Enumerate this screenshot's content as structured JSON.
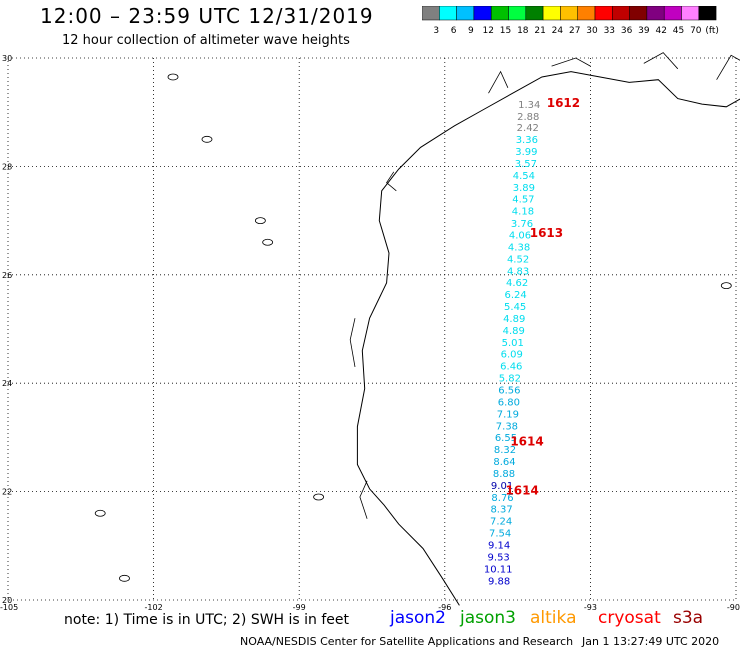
{
  "header": {
    "title": "12:00 – 23:59 UTC 12/31/2019",
    "subtitle": "12 hour collection of altimeter wave heights"
  },
  "legend": {
    "unit": "(ft)",
    "bins": [
      {
        "label": "3",
        "color": "#808080"
      },
      {
        "label": "6",
        "color": "#00ffff"
      },
      {
        "label": "9",
        "color": "#00c0ff"
      },
      {
        "label": "12",
        "color": "#0000ff"
      },
      {
        "label": "15",
        "color": "#00c000"
      },
      {
        "label": "18",
        "color": "#00ff40"
      },
      {
        "label": "21",
        "color": "#008000"
      },
      {
        "label": "24",
        "color": "#ffff00"
      },
      {
        "label": "27",
        "color": "#ffc000"
      },
      {
        "label": "30",
        "color": "#ff8000"
      },
      {
        "label": "33",
        "color": "#ff0000"
      },
      {
        "label": "36",
        "color": "#c00000"
      },
      {
        "label": "39",
        "color": "#800000"
      },
      {
        "label": "42",
        "color": "#800080"
      },
      {
        "label": "45",
        "color": "#c000c0"
      },
      {
        "label": "70",
        "color": "#ff80ff"
      },
      {
        "label": "",
        "color": "#000000"
      }
    ]
  },
  "axes": {
    "lat_ticks": [
      "30",
      "28",
      "26",
      "24",
      "22",
      "20"
    ],
    "lon_ticks": [
      "-105",
      "-102",
      "-99",
      "-96",
      "-93",
      "-90"
    ]
  },
  "track_labels": [
    {
      "value": "1612",
      "lon": -93.9,
      "lat": 29.1
    },
    {
      "value": "1613",
      "lon": -94.25,
      "lat": 26.7
    },
    {
      "value": "1614",
      "lon": -94.65,
      "lat": 22.85
    },
    {
      "value": "1614",
      "lon": -94.75,
      "lat": 21.95
    }
  ],
  "wave_heights": [
    {
      "value": "1.34",
      "lon": -94.26,
      "lat": 29.08,
      "color": "#808080"
    },
    {
      "value": "2.88",
      "lon": -94.28,
      "lat": 28.86,
      "color": "#808080"
    },
    {
      "value": "2.42",
      "lon": -94.29,
      "lat": 28.65,
      "color": "#808080"
    },
    {
      "value": "3.36",
      "lon": -94.31,
      "lat": 28.43,
      "color": "#00ddee"
    },
    {
      "value": "3.99",
      "lon": -94.32,
      "lat": 28.21,
      "color": "#00ddee"
    },
    {
      "value": "3.57",
      "lon": -94.33,
      "lat": 27.99,
      "color": "#00ddee"
    },
    {
      "value": "4.54",
      "lon": -94.37,
      "lat": 27.77,
      "color": "#00ddee"
    },
    {
      "value": "3.89",
      "lon": -94.37,
      "lat": 27.55,
      "color": "#00ddee"
    },
    {
      "value": "4.57",
      "lon": -94.38,
      "lat": 27.33,
      "color": "#00ddee"
    },
    {
      "value": "4.18",
      "lon": -94.39,
      "lat": 27.11,
      "color": "#00ddee"
    },
    {
      "value": "3.76",
      "lon": -94.41,
      "lat": 26.88,
      "color": "#00ddee"
    },
    {
      "value": "4.06",
      "lon": -94.45,
      "lat": 26.67,
      "color": "#00ddee"
    },
    {
      "value": "4.38",
      "lon": -94.47,
      "lat": 26.45,
      "color": "#00ddee"
    },
    {
      "value": "4.52",
      "lon": -94.49,
      "lat": 26.23,
      "color": "#00ddee"
    },
    {
      "value": "4.83",
      "lon": -94.49,
      "lat": 26.01,
      "color": "#00ddee"
    },
    {
      "value": "4.62",
      "lon": -94.51,
      "lat": 25.79,
      "color": "#00ddee"
    },
    {
      "value": "6.24",
      "lon": -94.54,
      "lat": 25.57,
      "color": "#00ddee"
    },
    {
      "value": "5.45",
      "lon": -94.55,
      "lat": 25.35,
      "color": "#00ddee"
    },
    {
      "value": "4.89",
      "lon": -94.57,
      "lat": 25.13,
      "color": "#00ddee"
    },
    {
      "value": "4.89",
      "lon": -94.58,
      "lat": 24.91,
      "color": "#00ddee"
    },
    {
      "value": "5.01",
      "lon": -94.6,
      "lat": 24.69,
      "color": "#00ddee"
    },
    {
      "value": "6.09",
      "lon": -94.62,
      "lat": 24.47,
      "color": "#00ddee"
    },
    {
      "value": "6.46",
      "lon": -94.63,
      "lat": 24.25,
      "color": "#00ddee"
    },
    {
      "value": "5.82",
      "lon": -94.66,
      "lat": 24.03,
      "color": "#00ddee"
    },
    {
      "value": "6.56",
      "lon": -94.67,
      "lat": 23.81,
      "color": "#00aadd"
    },
    {
      "value": "6.80",
      "lon": -94.68,
      "lat": 23.59,
      "color": "#00aadd"
    },
    {
      "value": "7.19",
      "lon": -94.7,
      "lat": 23.37,
      "color": "#00aadd"
    },
    {
      "value": "7.38",
      "lon": -94.72,
      "lat": 23.15,
      "color": "#00aadd"
    },
    {
      "value": "6.55",
      "lon": -94.74,
      "lat": 22.93,
      "color": "#00aadd"
    },
    {
      "value": "8.32",
      "lon": -94.76,
      "lat": 22.71,
      "color": "#00aadd"
    },
    {
      "value": "8.64",
      "lon": -94.77,
      "lat": 22.49,
      "color": "#00aadd"
    },
    {
      "value": "8.88",
      "lon": -94.78,
      "lat": 22.27,
      "color": "#00aadd"
    },
    {
      "value": "9.01",
      "lon": -94.82,
      "lat": 22.05,
      "color": "#0000aa"
    },
    {
      "value": "8.76",
      "lon": -94.81,
      "lat": 21.83,
      "color": "#00aadd"
    },
    {
      "value": "8.37",
      "lon": -94.83,
      "lat": 21.61,
      "color": "#00aadd"
    },
    {
      "value": "7.24",
      "lon": -94.84,
      "lat": 21.39,
      "color": "#00aadd"
    },
    {
      "value": "7.54",
      "lon": -94.86,
      "lat": 21.17,
      "color": "#00aadd"
    },
    {
      "value": "9.14",
      "lon": -94.88,
      "lat": 20.95,
      "color": "#0000cc"
    },
    {
      "value": "9.53",
      "lon": -94.89,
      "lat": 20.73,
      "color": "#0000cc"
    },
    {
      "value": "10.11",
      "lon": -94.9,
      "lat": 20.51,
      "color": "#0000cc"
    },
    {
      "value": "9.88",
      "lon": -94.88,
      "lat": 20.29,
      "color": "#0000cc"
    }
  ],
  "footer": {
    "note": "note: 1) Time is in UTC; 2) SWH is in feet",
    "missions": [
      {
        "name": "jason2",
        "color": "#0000ff"
      },
      {
        "name": "jason3",
        "color": "#00a000"
      },
      {
        "name": "altika",
        "color": "#ff9900"
      },
      {
        "name": "cryosat",
        "color": "#ff0000"
      },
      {
        "name": "s3a",
        "color": "#990000"
      }
    ],
    "credit": "NOAA/NESDIS Center for Satellite Applications and Research",
    "generated": "Jan  1 13:27:49 UTC 2020"
  }
}
